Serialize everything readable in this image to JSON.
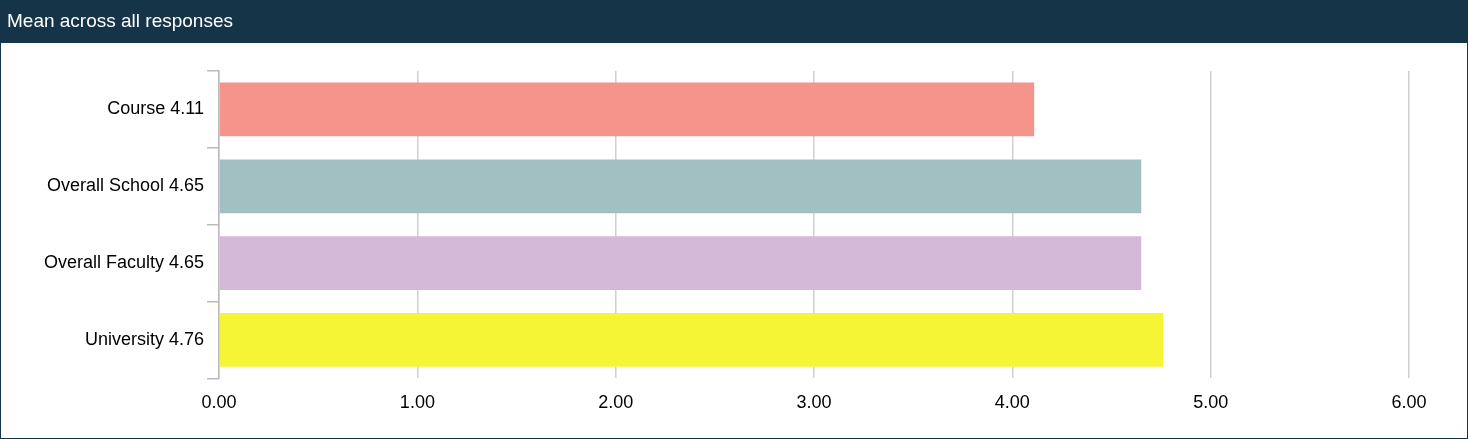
{
  "chart_data": {
    "type": "bar",
    "orientation": "horizontal",
    "title": "Mean across all responses",
    "categories": [
      "Course 4.11",
      "Overall School 4.65",
      "Overall Faculty 4.65",
      "University 4.76"
    ],
    "values": [
      4.11,
      4.65,
      4.65,
      4.76
    ],
    "colors": [
      "#f4948a",
      "#a2bfc2",
      "#d5b9d8",
      "#f5f536"
    ],
    "xlim": [
      0,
      6
    ],
    "xticks": [
      {
        "value": 0,
        "label": "0.00"
      },
      {
        "value": 1,
        "label": "1.00"
      },
      {
        "value": 2,
        "label": "2.00"
      },
      {
        "value": 3,
        "label": "3.00"
      },
      {
        "value": 4,
        "label": "4.00"
      },
      {
        "value": 5,
        "label": "5.00"
      },
      {
        "value": 6,
        "label": "6.00"
      }
    ],
    "grid": "x",
    "legend": false
  }
}
